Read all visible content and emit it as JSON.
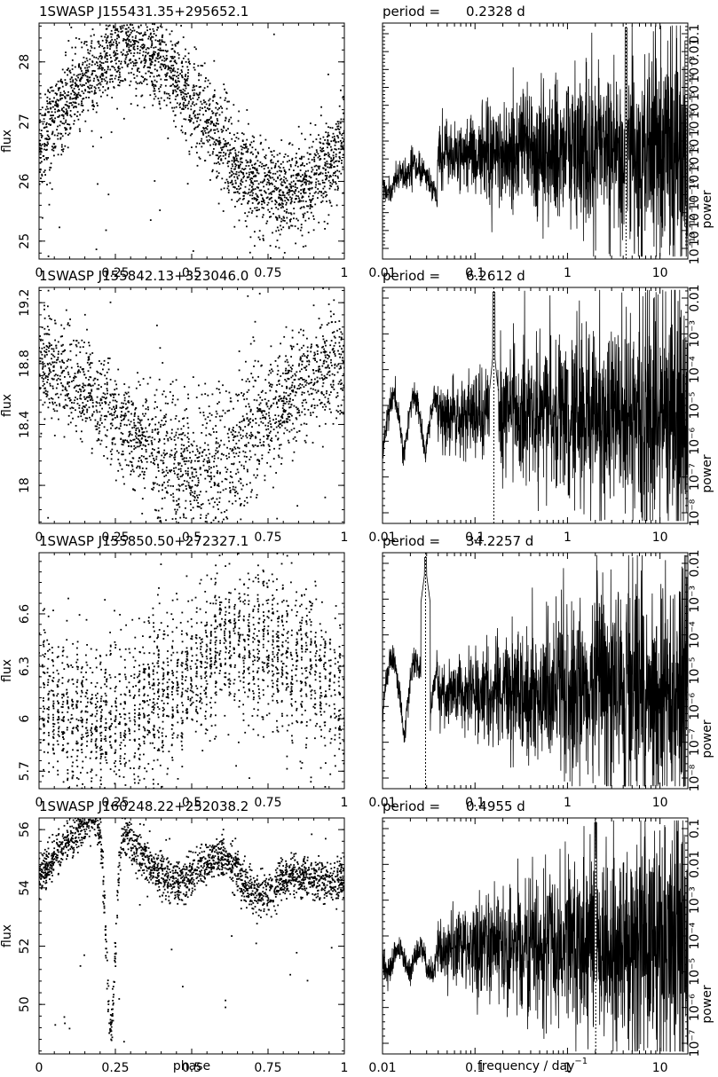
{
  "chart_data": [
    {
      "type": "scatter",
      "title": "1SWASP J155431.35+295652.1",
      "ylabel": "flux",
      "xlim": [
        0,
        1
      ],
      "ylim": [
        24.7,
        28.65
      ],
      "xticks": [
        "0",
        "0.25",
        "0.5",
        "0.75",
        "1"
      ],
      "yticks": [
        {
          "value": 25,
          "label": "25"
        },
        {
          "value": 26,
          "label": "26"
        },
        {
          "value": 27,
          "label": "27"
        },
        {
          "value": 28,
          "label": "28"
        }
      ],
      "description": "phase-folded light curve, sinusoidal: minimum ~25.8 at phase 0.27, maximum ~28.2 at phase 0.8"
    },
    {
      "type": "line",
      "title": "period =",
      "period_value": "0.2328 d",
      "ylabel": "power",
      "xscale": "log",
      "xlim": [
        0.01,
        20
      ],
      "xticks": [
        "0.01",
        "0.1",
        "1",
        "10"
      ],
      "yscale": "log",
      "ytick_labels": [
        "10⁻¹³",
        "10⁻¹²",
        "10⁻¹¹",
        "10⁻¹⁰",
        "10⁻⁹",
        "10⁻⁸",
        "10⁻⁷",
        "10⁻⁶",
        "10⁻⁵",
        "10⁻⁴",
        "10⁻³",
        "0.01",
        "0.1"
      ],
      "peak_frequency": 4.296,
      "description": "periodogram with spike at 4.30 day^-1"
    },
    {
      "type": "scatter",
      "title": "1SWASP J155842.13+323046.0",
      "ylabel": "flux",
      "xlim": [
        0,
        1
      ],
      "ylim": [
        17.75,
        19.3
      ],
      "xticks": [
        "0",
        "0.25",
        "0.5",
        "0.75",
        "1"
      ],
      "yticks": [
        {
          "value": 18,
          "label": "18"
        },
        {
          "value": 18.4,
          "label": "18.4"
        },
        {
          "value": 18.8,
          "label": "18.8"
        },
        {
          "value": 19.2,
          "label": "19.2"
        }
      ],
      "description": "minimum ~18.1 at phase 0.1, maximum ~18.9 at phase 0.45"
    },
    {
      "type": "line",
      "title": "period =",
      "period_value": "6.2612 d",
      "ylabel": "power",
      "xscale": "log",
      "xlim": [
        0.01,
        20
      ],
      "xticks": [
        "0.01",
        "0.1",
        "1",
        "10"
      ],
      "yscale": "log",
      "ytick_labels": [
        "10⁻⁸",
        "10⁻⁷",
        "10⁻⁶",
        "10⁻⁵",
        "10⁻⁴",
        "10⁻³",
        "0.01"
      ],
      "peak_frequency": 0.1597,
      "description": "strong peak at 0.16 day^-1"
    },
    {
      "type": "scatter",
      "title": "1SWASP J155850.50+272327.1",
      "ylabel": "flux",
      "xlim": [
        0,
        1
      ],
      "ylim": [
        5.6,
        6.95
      ],
      "xticks": [
        "0",
        "0.25",
        "0.5",
        "0.75",
        "1"
      ],
      "yticks": [
        {
          "value": 5.7,
          "label": "5.7"
        },
        {
          "value": 6,
          "label": "6"
        },
        {
          "value": 6.3,
          "label": "6.3"
        },
        {
          "value": 6.6,
          "label": "6.6"
        }
      ],
      "description": "vertical stripes, low ~6.0 at phase 0.25, high ~6.5 at phase 0.7"
    },
    {
      "type": "line",
      "title": "period =",
      "period_value": "34.2257 d",
      "ylabel": "power",
      "xscale": "log",
      "xlim": [
        0.01,
        20
      ],
      "xticks": [
        "0.01",
        "0.1",
        "1",
        "10"
      ],
      "yscale": "log",
      "ytick_labels": [
        "10⁻⁸",
        "10⁻⁷",
        "10⁻⁶",
        "10⁻⁵",
        "10⁻⁴",
        "10⁻³",
        "0.01"
      ],
      "peak_frequency": 0.0292,
      "description": "peak at 0.029 day^-1, secondary spike at 1 day^-1"
    },
    {
      "type": "scatter",
      "title": "1SWASP J160248.22+252038.2",
      "ylabel": "flux",
      "xlim": [
        0,
        1
      ],
      "ylim": [
        48.3,
        56.4
      ],
      "xticks": [
        "0",
        "0.25",
        "0.5",
        "0.75",
        "1"
      ],
      "yticks": [
        {
          "value": 50,
          "label": "50"
        },
        {
          "value": 52,
          "label": "52"
        },
        {
          "value": 54,
          "label": "54"
        },
        {
          "value": 56,
          "label": "56"
        }
      ],
      "description": "eclipsing binary: primary eclipse to ~48.5 at phase 0.23, secondary minimum ~51.8 at phase 0.72"
    },
    {
      "type": "line",
      "title": "period =",
      "period_value": "0.4955 d",
      "ylabel": "power",
      "xlabel": "frequency / day",
      "xlabel_sup": "−1",
      "xscale": "log",
      "xlim": [
        0.01,
        20
      ],
      "xticks": [
        "0.01",
        "0.1",
        "1",
        "10"
      ],
      "yscale": "log",
      "ytick_labels": [
        "10⁻⁷",
        "10⁻⁶",
        "10⁻⁵",
        "10⁻⁴",
        "10⁻³",
        "0.01",
        "0.1"
      ],
      "peak_frequency": 2.018,
      "description": "harmonic series at multiples of 2.02 day^-1"
    }
  ],
  "bottom_labels": {
    "phase": "phase",
    "frequency": "frequency / day",
    "frequency_sup": "−1"
  }
}
